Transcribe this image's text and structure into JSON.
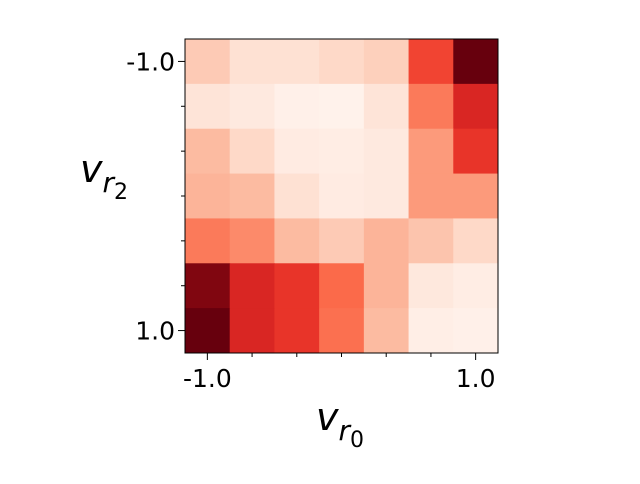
{
  "chart_data": {
    "type": "heatmap",
    "xlabel": {
      "base": "v",
      "sub": "r",
      "subsub": "0"
    },
    "ylabel": {
      "base": "v",
      "sub": "r",
      "subsub": "2"
    },
    "xlim": [
      -1.1667,
      1.1667
    ],
    "ylim": [
      -1.1667,
      1.1667
    ],
    "xticks": [
      {
        "value": -1,
        "label": "-1.0"
      },
      {
        "value": 1,
        "label": "1.0"
      }
    ],
    "yticks": [
      {
        "value": -1,
        "label": "-1.0"
      },
      {
        "value": 1,
        "label": "1.0"
      }
    ],
    "xminorticks": [
      -0.6667,
      -0.3333,
      0,
      0.3333,
      0.6667
    ],
    "yminorticks": [
      -0.6667,
      -0.3333,
      0,
      0.3333,
      0.6667
    ],
    "clim": [
      0,
      1
    ],
    "colormap": [
      "#fff5f0",
      "#fee0d2",
      "#fcbba1",
      "#fc9272",
      "#fb6a4a",
      "#ef3b2c",
      "#cb181d",
      "#a50f15",
      "#67000d"
    ],
    "values": [
      [
        0.2,
        0.12,
        0.12,
        0.15,
        0.18,
        0.6,
        1.0
      ],
      [
        0.1,
        0.07,
        0.03,
        0.02,
        0.1,
        0.45,
        0.7
      ],
      [
        0.25,
        0.15,
        0.06,
        0.05,
        0.07,
        0.35,
        0.65
      ],
      [
        0.27,
        0.25,
        0.12,
        0.06,
        0.07,
        0.35,
        0.35
      ],
      [
        0.45,
        0.4,
        0.25,
        0.2,
        0.27,
        0.22,
        0.15
      ],
      [
        0.95,
        0.7,
        0.65,
        0.5,
        0.27,
        0.08,
        0.05
      ],
      [
        1.0,
        0.7,
        0.65,
        0.48,
        0.25,
        0.04,
        0.03
      ]
    ]
  }
}
